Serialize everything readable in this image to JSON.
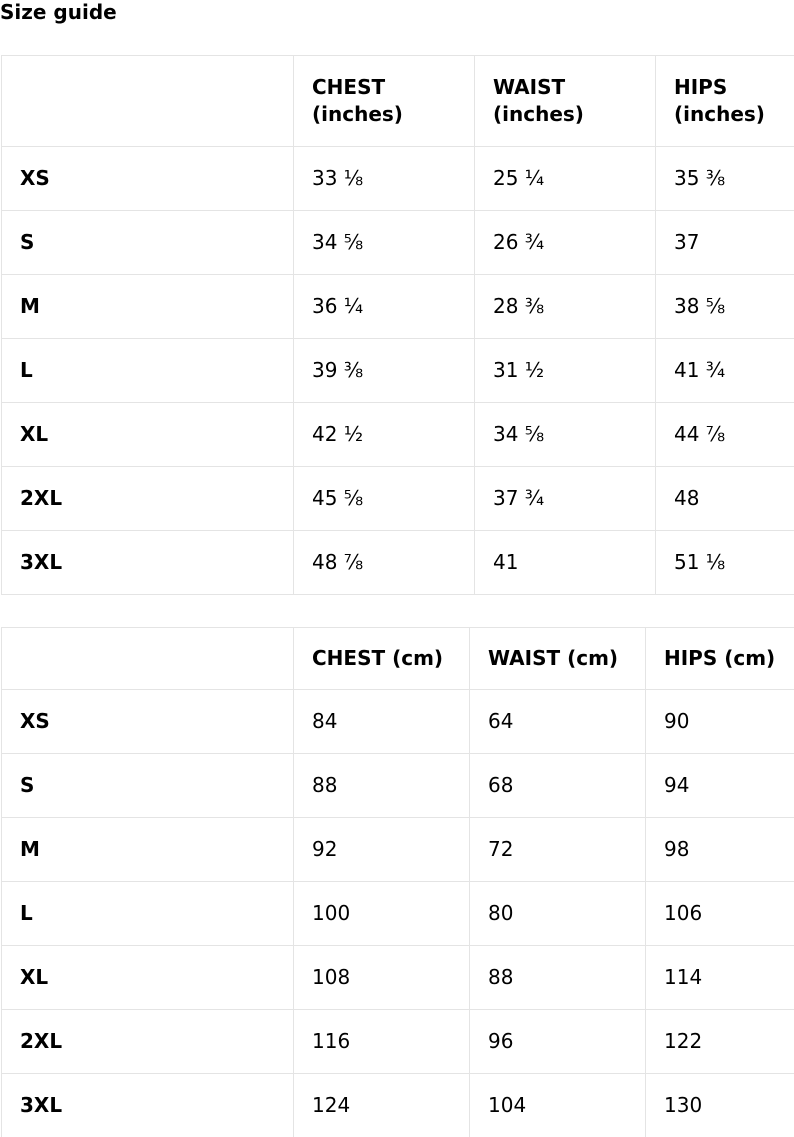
{
  "title": "Size guide",
  "inches_table": {
    "headers": [
      "",
      "CHEST (inches)",
      "WAIST (inches)",
      "HIPS (inches)"
    ],
    "rows": [
      [
        "XS",
        "33 ⅛",
        "25 ¼",
        "35 ⅜"
      ],
      [
        "S",
        "34 ⅝",
        "26 ¾",
        "37"
      ],
      [
        "M",
        "36 ¼",
        "28 ⅜",
        "38 ⅝"
      ],
      [
        "L",
        "39 ⅜",
        "31 ½",
        "41 ¾"
      ],
      [
        "XL",
        "42 ½",
        "34 ⅝",
        "44 ⅞"
      ],
      [
        "2XL",
        "45 ⅝",
        "37 ¾",
        "48"
      ],
      [
        "3XL",
        "48 ⅞",
        "41",
        "51 ⅛"
      ]
    ]
  },
  "cm_table": {
    "headers": [
      "",
      "CHEST (cm)",
      "WAIST (cm)",
      "HIPS (cm)"
    ],
    "rows": [
      [
        "XS",
        "84",
        "64",
        "90"
      ],
      [
        "S",
        "88",
        "68",
        "94"
      ],
      [
        "M",
        "92",
        "72",
        "98"
      ],
      [
        "L",
        "100",
        "80",
        "106"
      ],
      [
        "XL",
        "108",
        "88",
        "114"
      ],
      [
        "2XL",
        "116",
        "96",
        "122"
      ],
      [
        "3XL",
        "124",
        "104",
        "130"
      ]
    ]
  }
}
